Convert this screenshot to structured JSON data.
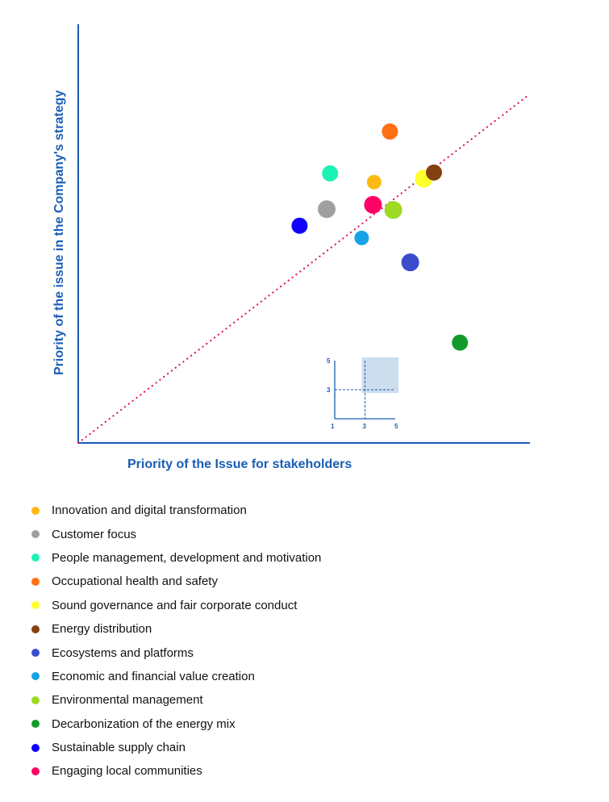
{
  "chart_data": {
    "type": "scatter",
    "title": "",
    "xlabel": "Priority of the Issue for stakeholders",
    "ylabel": "Priority of the issue in the Company's strategy",
    "xlim": [
      1,
      5
    ],
    "ylim": [
      1,
      5.8
    ],
    "grid": false,
    "reference_line": "diagonal y = x (dotted)",
    "legend_placement": "bottom",
    "points": [
      {
        "name": "Innovation and digital transformation",
        "x": 3.62,
        "y": 3.99,
        "color": "#FDB913",
        "size": 9
      },
      {
        "name": "Customer focus",
        "x": 3.2,
        "y": 3.68,
        "color": "#A0A0A0",
        "size": 11
      },
      {
        "name": "People management, development and motivation",
        "x": 3.23,
        "y": 4.09,
        "color": "#1DF2B5",
        "size": 10
      },
      {
        "name": "Occupational health and safety",
        "x": 3.76,
        "y": 4.57,
        "color": "#FF6F14",
        "size": 10
      },
      {
        "name": "Sound governance and fair corporate conduct",
        "x": 4.06,
        "y": 4.03,
        "color": "#FFFF2E",
        "size": 11
      },
      {
        "name": "Energy distribution",
        "x": 4.15,
        "y": 4.1,
        "color": "#84400F",
        "size": 10
      },
      {
        "name": "Ecosystems and platforms",
        "x": 3.94,
        "y": 3.07,
        "color": "#3A4BCC",
        "size": 11
      },
      {
        "name": "Economic and financial value creation",
        "x": 3.51,
        "y": 3.35,
        "color": "#16A3E5",
        "size": 9
      },
      {
        "name": "Environmental management",
        "x": 3.79,
        "y": 3.67,
        "color": "#9ED923",
        "size": 11
      },
      {
        "name": "Decarbonization of the energy mix",
        "x": 4.38,
        "y": 2.15,
        "color": "#129B2A",
        "size": 10
      },
      {
        "name": "Sustainable supply chain",
        "x": 2.96,
        "y": 3.49,
        "color": "#1100FF",
        "size": 10
      },
      {
        "name": "Engaging local communities",
        "x": 3.61,
        "y": 3.73,
        "color": "#FF0066",
        "size": 11
      }
    ],
    "inset": {
      "x_ticks": [
        "1",
        "3",
        "5"
      ],
      "y_ticks": [
        "3",
        "5"
      ],
      "threshold": 3,
      "highlight_color": "#CCDDEE"
    },
    "axis_color": "#1A5DB5",
    "diagonal_color": "#E0106A"
  }
}
